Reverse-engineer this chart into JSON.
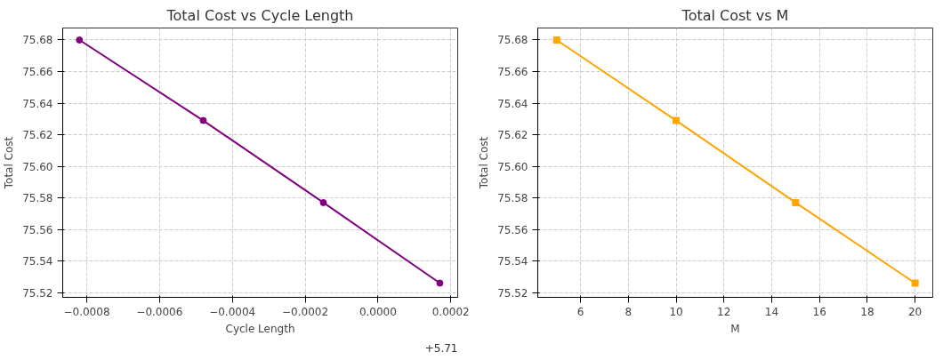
{
  "chart_data": [
    {
      "type": "line",
      "title": "Total Cost vs Cycle Length",
      "xlabel": "Cycle Length",
      "ylabel": "Total Cost",
      "marker": "circle",
      "line_style": "solid",
      "grid": true,
      "x": [
        -0.00082,
        -0.00048,
        -0.00015,
        0.00017
      ],
      "series": [
        {
          "color": "#800080",
          "values": [
            75.68,
            75.629,
            75.577,
            75.526
          ]
        }
      ],
      "xlim": [
        -0.000866,
        0.000219
      ],
      "xticks": [
        {
          "value": -0.0008,
          "label": "−0.0008"
        },
        {
          "value": -0.0006,
          "label": "−0.0006"
        },
        {
          "value": -0.0004,
          "label": "−0.0004"
        },
        {
          "value": -0.0002,
          "label": "−0.0002"
        },
        {
          "value": 0,
          "label": "0.0000"
        },
        {
          "value": 0.0002,
          "label": "0.0002"
        }
      ],
      "ylim": [
        75.517,
        75.6876
      ],
      "yticks": [
        75.52,
        75.54,
        75.56,
        75.58,
        {
          "value": 75.6,
          "label": "75.60"
        },
        75.62,
        75.64,
        75.66,
        75.68
      ],
      "annotations": [
        "+5.71"
      ]
    },
    {
      "type": "line",
      "title": "Total Cost vs M",
      "xlabel": "M",
      "ylabel": "Total Cost",
      "marker": "square",
      "line_style": "solid",
      "grid": true,
      "x": [
        5,
        10,
        15,
        20
      ],
      "series": [
        {
          "color": "#ffa500",
          "values": [
            75.68,
            75.629,
            75.577,
            75.526
          ]
        }
      ],
      "xlim": [
        4.21,
        20.74
      ],
      "xticks": [
        6,
        8,
        10,
        12,
        14,
        16,
        18,
        20
      ],
      "ylim": [
        75.517,
        75.6876
      ],
      "yticks": [
        75.52,
        75.54,
        75.56,
        75.58,
        {
          "value": 75.6,
          "label": "75.60"
        },
        75.62,
        75.64,
        75.66,
        75.68
      ]
    }
  ]
}
